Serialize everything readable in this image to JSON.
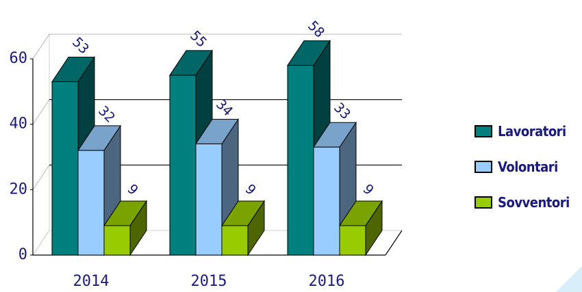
{
  "chart_data": {
    "type": "bar",
    "categories": [
      "2014",
      "2015",
      "2016"
    ],
    "series": [
      {
        "name": "Lavoratori",
        "values": [
          53,
          55,
          58
        ],
        "color": "#007f7f"
      },
      {
        "name": "Volontari",
        "values": [
          32,
          34,
          33
        ],
        "color": "#99ccff"
      },
      {
        "name": "Sovventori",
        "values": [
          9,
          9,
          9
        ],
        "color": "#99cc00"
      }
    ],
    "ylim": [
      0,
      60
    ],
    "yticks": [
      0,
      20,
      40,
      60
    ],
    "grid": true,
    "legend_position": "right",
    "three_d": true
  }
}
